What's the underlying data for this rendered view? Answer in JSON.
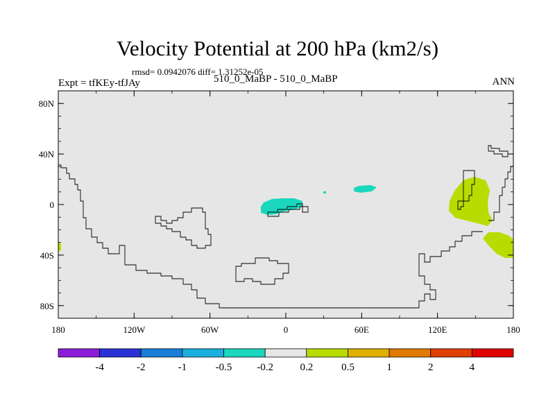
{
  "title": "Velocity Potential at 200 hPa (km2/s)",
  "stats_line": "rmsd= 0.0942076 diff= 1.31252e-05",
  "left_string": "Expt = tfKEy-tfJAy",
  "center_string": "510_0_MaBP - 510_0_MaBP",
  "right_string": "ANN",
  "map": {
    "background_color": "#e6e6e6",
    "lon_range": [
      -180,
      180
    ],
    "lat_range": [
      -90,
      90
    ],
    "lat_ticks": [
      {
        "value": 80,
        "label": "80N"
      },
      {
        "value": 40,
        "label": "40N"
      },
      {
        "value": 0,
        "label": "0"
      },
      {
        "value": -40,
        "label": "40S"
      },
      {
        "value": -80,
        "label": "80S"
      }
    ],
    "lon_ticks": [
      {
        "value": -180,
        "label": "180"
      },
      {
        "value": -120,
        "label": "120W"
      },
      {
        "value": -60,
        "label": "60W"
      },
      {
        "value": 0,
        "label": "0"
      },
      {
        "value": 60,
        "label": "60E"
      },
      {
        "value": 120,
        "label": "120E"
      },
      {
        "value": 180,
        "label": "180"
      }
    ]
  },
  "colorbar": {
    "colors": [
      "#8b1ed8",
      "#2a32d6",
      "#1a7ed8",
      "#1ab0e0",
      "#1ad7bd",
      "#e6e6e6",
      "#b8dc00",
      "#e0b000",
      "#e07a00",
      "#e04000",
      "#e00000"
    ],
    "labels": [
      "-4",
      "-2",
      "-1",
      "-0.5",
      "-0.2",
      "0.2",
      "0.5",
      "1",
      "2",
      "4"
    ]
  }
}
